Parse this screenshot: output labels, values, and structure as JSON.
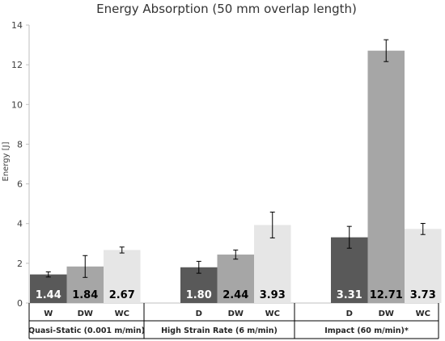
{
  "chart_data": {
    "type": "bar",
    "title": "Energy Absorption (50 mm overlap length)",
    "ylabel": "Energy [J]",
    "xlabel": "",
    "ylim": [
      0,
      14
    ],
    "yticks": [
      0,
      2,
      4,
      6,
      8,
      10,
      12,
      14
    ],
    "grid": false,
    "groups": [
      {
        "label": "Quasi-Static (0.001 m/min)",
        "bars": [
          {
            "category": "W",
            "value": 1.44,
            "label": "1.44",
            "error": 0.13,
            "color": "#595959"
          },
          {
            "category": "DW",
            "value": 1.84,
            "label": "1.84",
            "error": 0.55,
            "color": "#a6a6a6"
          },
          {
            "category": "WC",
            "value": 2.67,
            "label": "2.67",
            "error": 0.15,
            "color": "#e6e6e6"
          }
        ]
      },
      {
        "label": "High Strain Rate (6 m/min)",
        "bars": [
          {
            "category": "D",
            "value": 1.8,
            "label": "1.80",
            "error": 0.3,
            "color": "#595959"
          },
          {
            "category": "DW",
            "value": 2.44,
            "label": "2.44",
            "error": 0.23,
            "color": "#a6a6a6"
          },
          {
            "category": "WC",
            "value": 3.93,
            "label": "3.93",
            "error": 0.65,
            "color": "#e6e6e6"
          }
        ]
      },
      {
        "label": "Impact (60 m/min)*",
        "bars": [
          {
            "category": "D",
            "value": 3.31,
            "label": "3.31",
            "error": 0.55,
            "color": "#595959"
          },
          {
            "category": "DW",
            "value": 12.71,
            "label": "12.71",
            "error": 0.55,
            "color": "#a6a6a6"
          },
          {
            "category": "WC",
            "value": 3.73,
            "label": "3.73",
            "error": 0.28,
            "color": "#e6e6e6"
          }
        ]
      }
    ]
  }
}
